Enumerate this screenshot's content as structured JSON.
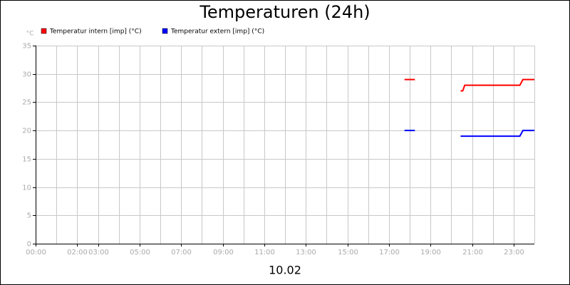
{
  "chart_data": {
    "type": "line",
    "title": "Temperaturen (24h)",
    "y_unit": "°C",
    "x_label": "10.02",
    "x": [
      17.75,
      18.25,
      19.3,
      20.45,
      20.55,
      20.65,
      23.3,
      23.45,
      24
    ],
    "series": [
      {
        "name": "Temperatur intern [imp] (°C)",
        "color": "#ff0000",
        "values": [
          29,
          29,
          null,
          27,
          27,
          28,
          28,
          29,
          29
        ]
      },
      {
        "name": "Temperatur extern [imp] (°C)",
        "color": "#0000ff",
        "values": [
          20,
          20,
          null,
          19,
          19,
          19,
          19,
          20,
          20
        ]
      }
    ],
    "xlim": [
      0,
      24
    ],
    "xticks": [
      {
        "value": 0,
        "label": "00:00"
      },
      {
        "value": 2,
        "label": "02:00"
      },
      {
        "value": 3,
        "label": "03:00"
      },
      {
        "value": 5,
        "label": "05:00"
      },
      {
        "value": 7,
        "label": "07:00"
      },
      {
        "value": 9,
        "label": "09:00"
      },
      {
        "value": 11,
        "label": "11:00"
      },
      {
        "value": 13,
        "label": "13:00"
      },
      {
        "value": 15,
        "label": "15:00"
      },
      {
        "value": 17,
        "label": "17:00"
      },
      {
        "value": 19,
        "label": "19:00"
      },
      {
        "value": 21,
        "label": "21:00"
      },
      {
        "value": 23,
        "label": "23:00"
      }
    ],
    "xgrid": [
      1,
      2,
      3,
      4,
      5,
      6,
      7,
      8,
      9,
      10,
      11,
      12,
      13,
      14,
      15,
      16,
      17,
      18,
      19,
      20,
      21,
      22,
      23,
      24
    ],
    "ylim": [
      0,
      35
    ],
    "yticks": [
      0,
      5,
      10,
      15,
      20,
      25,
      30,
      35
    ],
    "grid": true
  }
}
